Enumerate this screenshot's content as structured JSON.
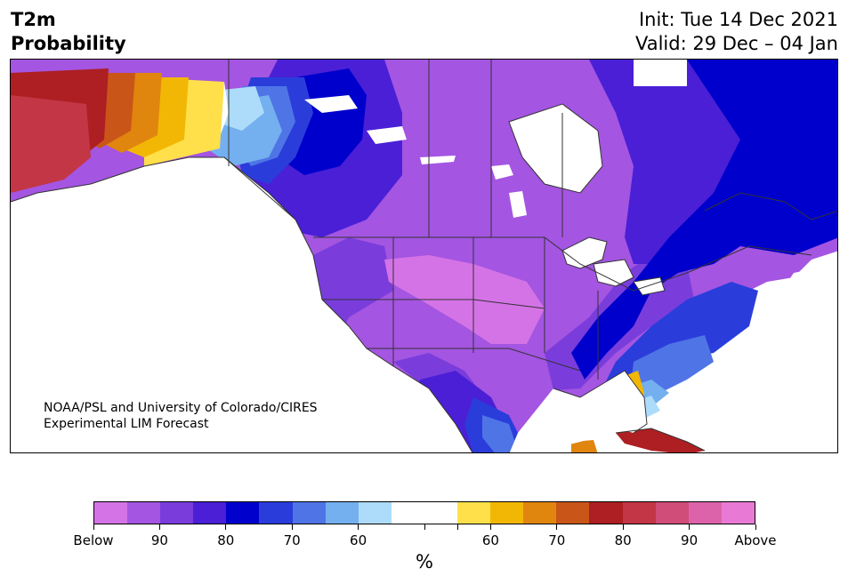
{
  "header": {
    "title_line1": "T2m",
    "title_line2": "Probability",
    "init": "Init: Tue 14 Dec 2021",
    "valid": "Valid: 29 Dec – 04 Jan"
  },
  "credit": {
    "line1": "NOAA/PSL and University of Colorado/CIRES",
    "line2": "Experimental LIM Forecast"
  },
  "colorbar": {
    "colors": [
      "#d473e6",
      "#a455e1",
      "#7a3ddc",
      "#4a1fd6",
      "#0000cc",
      "#2a3ddb",
      "#4f74e6",
      "#74b0f0",
      "#addcfb",
      "#ffffff",
      "#ffffff",
      "#ffe04a",
      "#f2b705",
      "#e0850e",
      "#c95518",
      "#ad1f22",
      "#c33645",
      "#d04c79",
      "#dc63aa",
      "#e87ad5"
    ],
    "tick_labels": [
      "Below",
      "90",
      "80",
      "70",
      "60",
      "",
      "",
      "60",
      "70",
      "80",
      "90",
      "Above"
    ],
    "unit": "%"
  },
  "map": {
    "palette": {
      "below_high": "#a455e1",
      "below_mid": "#7a3ddc",
      "below_deep": "#4a1fd6",
      "below_strong": "#0000cc",
      "below_blue": "#2a3ddb",
      "below_light": "#4f74e6",
      "below_sky": "#74b0f0",
      "below_pale": "#addcfb",
      "below_pink": "#d473e6",
      "above_yellow": "#ffe04a",
      "above_gold": "#f2b705",
      "above_orange": "#e0850e",
      "above_dark": "#c95518",
      "above_red": "#ad1f22",
      "above_rose": "#c33645",
      "border": "#333333"
    }
  }
}
